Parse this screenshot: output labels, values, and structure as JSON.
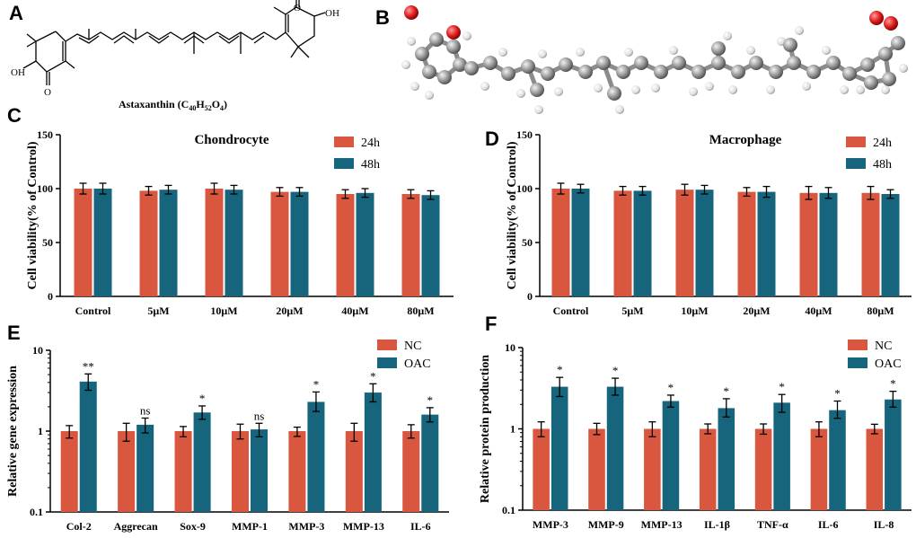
{
  "colors": {
    "series1": "#d9573f",
    "series2": "#17657d",
    "axis": "#000000",
    "oxygen": "#e02020",
    "carbon": "#9a9a9a",
    "hydrogen": "#e8e8e8"
  },
  "panels": {
    "A": "A",
    "B": "B",
    "C": "C",
    "D": "D",
    "E": "E",
    "F": "F"
  },
  "molecule": {
    "label_prefix": "Astaxanthin (C",
    "c_count": "40",
    "h_mid": "H",
    "h_count": "52",
    "o_mid": "O",
    "o_count": "4",
    "suffix": ")",
    "oh_left": "OH",
    "oh_right": "OH",
    "ketone_left": "O",
    "ketone_right": "O"
  },
  "chart_data": [
    {
      "id": "C",
      "type": "bar",
      "title": "Chondrocyte",
      "ylabel": "Cell viability(% of Control)",
      "ylim": [
        0,
        150
      ],
      "yticks": [
        "0",
        "50",
        "100",
        "150"
      ],
      "categories": [
        "Control",
        "5μM",
        "10μM",
        "20μM",
        "40μM",
        "80μM"
      ],
      "series": [
        {
          "name": "24h",
          "values": [
            100,
            98,
            100,
            97,
            95,
            95
          ],
          "errors": [
            5,
            4,
            5,
            4,
            4,
            4
          ]
        },
        {
          "name": "48h",
          "values": [
            100,
            99,
            99,
            97,
            96,
            94
          ],
          "errors": [
            5,
            4,
            4,
            4,
            4,
            4
          ]
        }
      ],
      "legend": "top-right"
    },
    {
      "id": "D",
      "type": "bar",
      "title": "Macrophage",
      "ylabel": "Cell viability(% of Control)",
      "ylim": [
        0,
        150
      ],
      "yticks": [
        "0",
        "50",
        "100",
        "150"
      ],
      "categories": [
        "Control",
        "5μM",
        "10μM",
        "20μM",
        "40μM",
        "80μM"
      ],
      "series": [
        {
          "name": "24h",
          "values": [
            100,
            98,
            99,
            97,
            96,
            96
          ],
          "errors": [
            5,
            4,
            5,
            4,
            6,
            6
          ]
        },
        {
          "name": "48h",
          "values": [
            100,
            98,
            99,
            97,
            96,
            95
          ],
          "errors": [
            4,
            4,
            4,
            5,
            5,
            4
          ]
        }
      ],
      "legend": "top-right"
    },
    {
      "id": "E",
      "type": "bar",
      "ylabel": "Relative gene expression",
      "yscale": "log",
      "ylim": [
        0.1,
        10
      ],
      "yticks": [
        "0.1",
        "1",
        "10"
      ],
      "categories": [
        "Col-2",
        "Aggrecan",
        "Sox-9",
        "MMP-1",
        "MMP-3",
        "MMP-13",
        "IL-6"
      ],
      "series": [
        {
          "name": "NC",
          "values": [
            1,
            1,
            1,
            1,
            1,
            1,
            1
          ],
          "err_low": [
            0.82,
            0.75,
            0.85,
            0.8,
            0.86,
            0.75,
            0.82
          ],
          "err_high": [
            1.17,
            1.25,
            1.14,
            1.22,
            1.12,
            1.25,
            1.2
          ]
        },
        {
          "name": "OAC",
          "values": [
            4.1,
            1.2,
            1.7,
            1.05,
            2.3,
            3.0,
            1.6
          ],
          "err_low": [
            3.2,
            0.95,
            1.4,
            0.85,
            1.75,
            2.3,
            1.3
          ],
          "err_high": [
            5.1,
            1.45,
            2.05,
            1.25,
            3.05,
            3.85,
            1.95
          ]
        }
      ],
      "significance": [
        "**",
        "ns",
        "*",
        "ns",
        "*",
        "*",
        "*"
      ],
      "legend": "top-right"
    },
    {
      "id": "F",
      "type": "bar",
      "ylabel": "Relative protein production",
      "yscale": "log",
      "ylim": [
        0.1,
        10
      ],
      "yticks": [
        "0.1",
        "1",
        "10"
      ],
      "categories": [
        "MMP-3",
        "MMP-9",
        "MMP-13",
        "IL-1β",
        "TNF-α",
        "IL-6",
        "IL-8"
      ],
      "series": [
        {
          "name": "NC",
          "values": [
            1,
            1,
            1,
            1,
            1,
            1,
            1
          ],
          "err_low": [
            0.8,
            0.85,
            0.8,
            0.87,
            0.86,
            0.8,
            0.87
          ],
          "err_high": [
            1.22,
            1.17,
            1.22,
            1.15,
            1.15,
            1.22,
            1.14
          ]
        },
        {
          "name": "OAC",
          "values": [
            3.3,
            3.3,
            2.2,
            1.8,
            2.1,
            1.7,
            2.3
          ],
          "err_low": [
            2.5,
            2.6,
            1.85,
            1.4,
            1.6,
            1.35,
            1.85
          ],
          "err_high": [
            4.3,
            4.2,
            2.6,
            2.35,
            2.65,
            2.2,
            2.9
          ]
        }
      ],
      "significance": [
        "*",
        "*",
        "*",
        "*",
        "*",
        "*",
        "*"
      ],
      "legend": "top-right"
    }
  ]
}
